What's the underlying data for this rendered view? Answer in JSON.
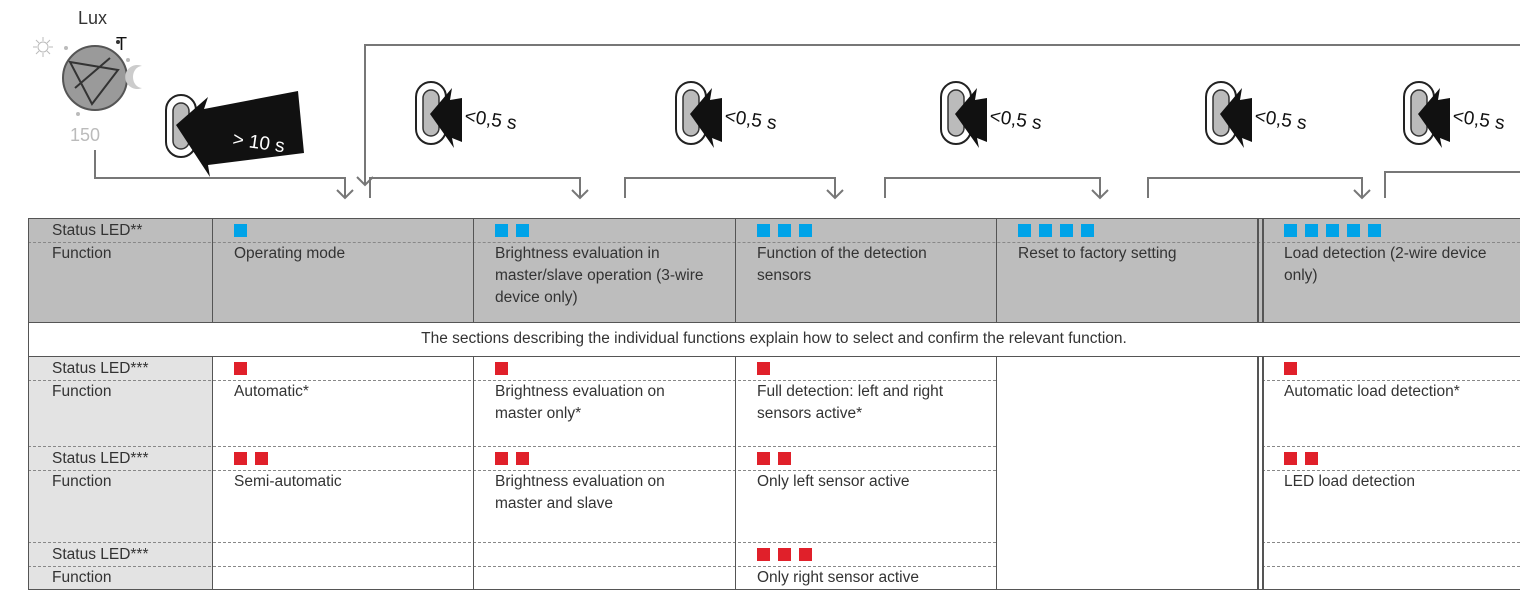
{
  "knob": {
    "top": "Lux",
    "right": "T",
    "bottom": "150"
  },
  "steps": [
    "> 10 s",
    "<0,5 s",
    "<0,5 s",
    "<0,5 s",
    "<0,5 s",
    "<0,5 s"
  ],
  "table": {
    "header": {
      "status_label": "Status LED**",
      "function_label": "Function",
      "functions": [
        "Operating mode",
        "Brightness evaluation in master/slave operation (3-wire device only)",
        "Function of the detection sensors",
        "Reset to factory setting",
        "Load detection (2-wire device only)"
      ]
    },
    "note": "The sections describing the individual functions explain how to select and confirm the relevant function.",
    "rows": [
      {
        "status_label": "Status LED***",
        "function_label": "Function"
      },
      {
        "status_label": "Status LED***",
        "function_label": "Function"
      },
      {
        "status_label": "Status LED***",
        "function_label": "Function"
      }
    ],
    "columns": [
      [
        "Automatic*",
        "Semi-automatic"
      ],
      [
        "Brightness evaluation on master only*",
        "Brightness evaluation on master and slave"
      ],
      [
        "Full detection: left and right sensors active*",
        "Only left sensor active",
        "Only right sensor active"
      ],
      [],
      [
        "Automatic load detection*",
        "LED load detection"
      ]
    ]
  }
}
